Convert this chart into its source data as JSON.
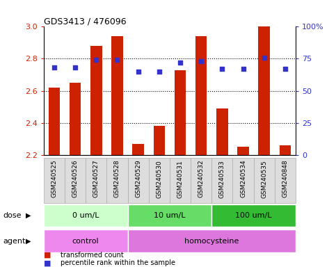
{
  "title": "GDS3413 / 476096",
  "samples": [
    "GSM240525",
    "GSM240526",
    "GSM240527",
    "GSM240528",
    "GSM240529",
    "GSM240530",
    "GSM240531",
    "GSM240532",
    "GSM240533",
    "GSM240534",
    "GSM240535",
    "GSM240848"
  ],
  "transformed_count": [
    2.62,
    2.65,
    2.88,
    2.94,
    2.27,
    2.38,
    2.73,
    2.94,
    2.49,
    2.25,
    3.0,
    2.26
  ],
  "percentile_rank": [
    68,
    68,
    74,
    74,
    65,
    65,
    72,
    73,
    67,
    67,
    76,
    67
  ],
  "ylim_left": [
    2.2,
    3.0
  ],
  "ylim_right": [
    0,
    100
  ],
  "yticks_left": [
    2.2,
    2.4,
    2.6,
    2.8,
    3.0
  ],
  "yticks_right": [
    0,
    25,
    50,
    75,
    100
  ],
  "bar_color": "#cc2200",
  "dot_color": "#3333cc",
  "tick_label_color_left": "#cc2200",
  "tick_label_color_right": "#3333cc",
  "dose_groups": [
    {
      "label": "0 um/L",
      "start": 0,
      "end": 4,
      "color": "#ccffcc"
    },
    {
      "label": "10 um/L",
      "start": 4,
      "end": 8,
      "color": "#66dd66"
    },
    {
      "label": "100 um/L",
      "start": 8,
      "end": 12,
      "color": "#33bb33"
    }
  ],
  "agent_groups": [
    {
      "label": "control",
      "start": 0,
      "end": 4,
      "color": "#ee88ee"
    },
    {
      "label": "homocysteine",
      "start": 4,
      "end": 12,
      "color": "#dd77dd"
    }
  ],
  "legend_items": [
    {
      "label": "transformed count",
      "color": "#cc2200"
    },
    {
      "label": "percentile rank within the sample",
      "color": "#3333cc"
    }
  ],
  "dose_label": "dose",
  "agent_label": "agent",
  "gridline_values": [
    2.4,
    2.6,
    2.8
  ],
  "sample_bg_color": "#dddddd",
  "sample_border_color": "#aaaaaa"
}
